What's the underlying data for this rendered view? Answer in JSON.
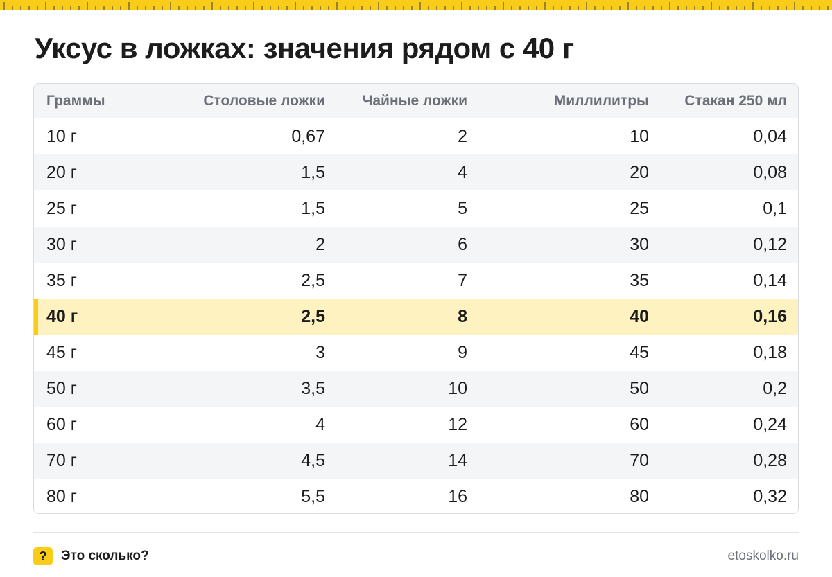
{
  "page": {
    "title": "Уксус в ложках: значения рядом с 40 г",
    "accent_color": "#f9cc1a",
    "highlight_row_color": "#fef2c0"
  },
  "table": {
    "columns": [
      "Граммы",
      "Столовые ложки",
      "Чайные ложки",
      "Миллилитры",
      "Стакан 250 мл"
    ],
    "highlighted_row": "40 г",
    "rows": [
      [
        "10 г",
        "0,67",
        "2",
        "10",
        "0,04"
      ],
      [
        "20 г",
        "1,5",
        "4",
        "20",
        "0,08"
      ],
      [
        "25 г",
        "1,5",
        "5",
        "25",
        "0,1"
      ],
      [
        "30 г",
        "2",
        "6",
        "30",
        "0,12"
      ],
      [
        "35 г",
        "2,5",
        "7",
        "35",
        "0,14"
      ],
      [
        "40 г",
        "2,5",
        "8",
        "40",
        "0,16"
      ],
      [
        "45 г",
        "3",
        "9",
        "45",
        "0,18"
      ],
      [
        "50 г",
        "3,5",
        "10",
        "50",
        "0,2"
      ],
      [
        "60 г",
        "4",
        "12",
        "60",
        "0,24"
      ],
      [
        "70 г",
        "4,5",
        "14",
        "70",
        "0,28"
      ],
      [
        "80 г",
        "5,5",
        "16",
        "80",
        "0,32"
      ]
    ]
  },
  "footer": {
    "badge_icon": "question-mark-icon",
    "badge_glyph": "?",
    "brand": "Это сколько?",
    "site": "etoskolko.ru"
  }
}
